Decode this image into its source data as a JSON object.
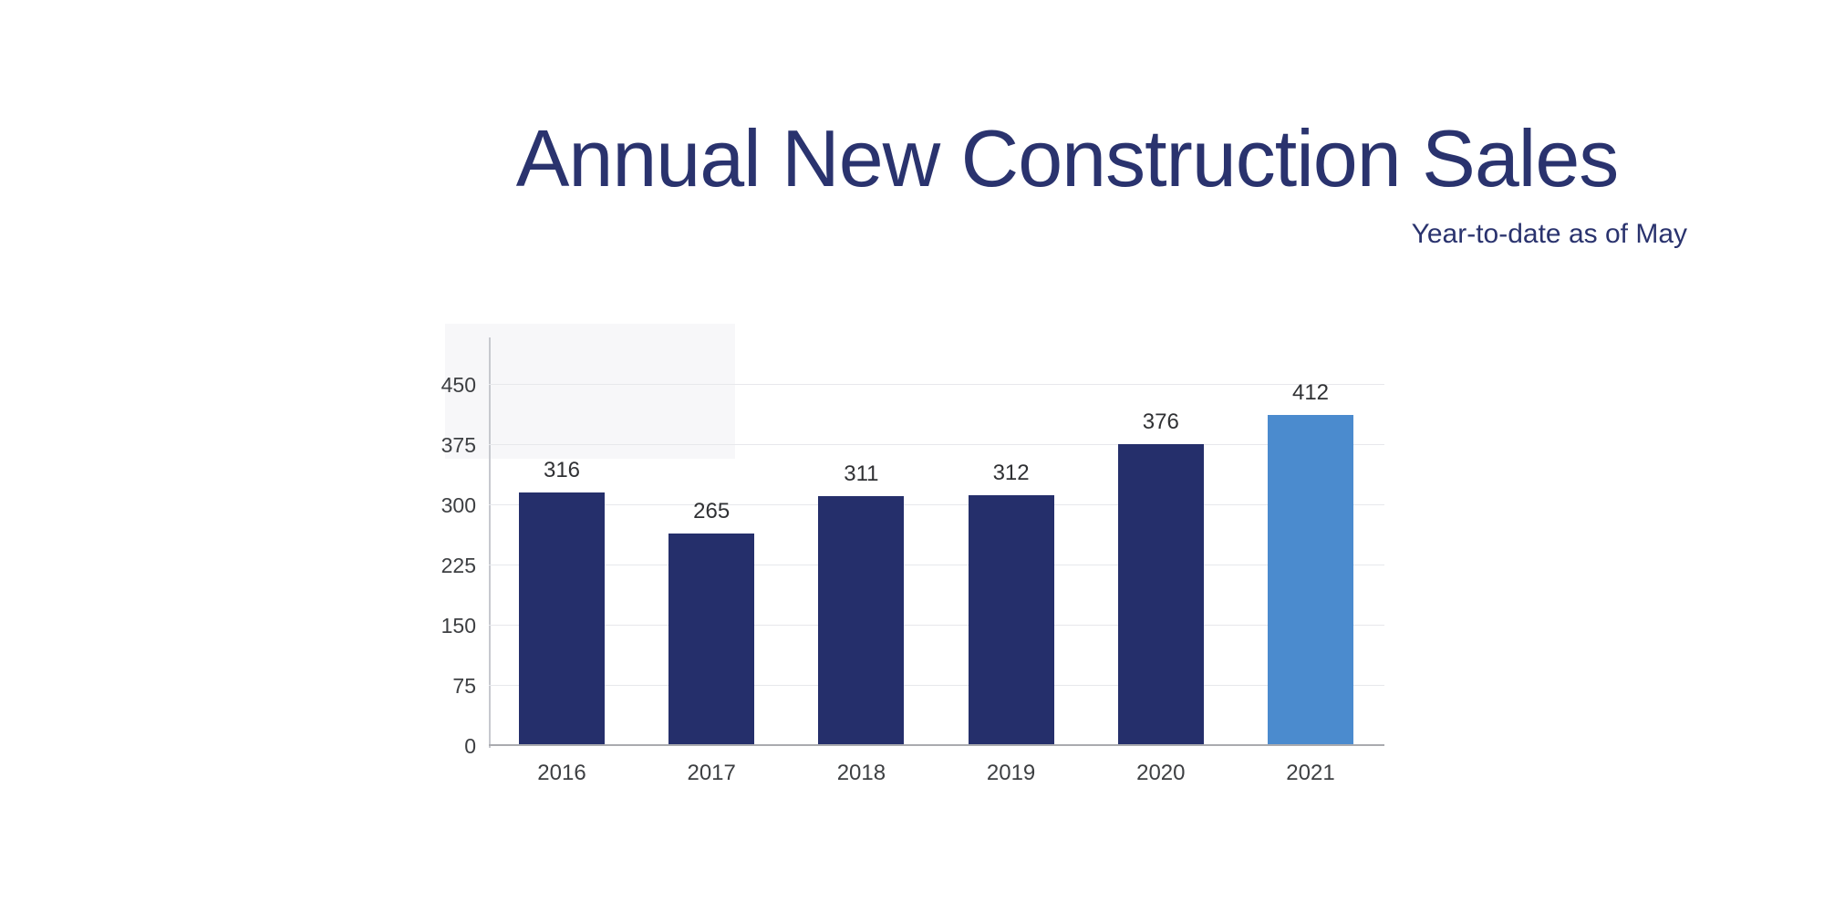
{
  "page": {
    "background_color": "#ffffff"
  },
  "header": {
    "title": "Annual New Construction Sales",
    "subtitle": "Year-to-date as of May",
    "title_color": "#2a336e"
  },
  "chart_data": {
    "type": "bar",
    "title": "Annual New Construction Sales",
    "subtitle": "Year-to-date as of May",
    "categories": [
      "2016",
      "2017",
      "2018",
      "2019",
      "2020",
      "2021"
    ],
    "values": [
      316,
      265,
      311,
      312,
      376,
      412
    ],
    "data_labels": [
      "316",
      "265",
      "311",
      "312",
      "376",
      "412"
    ],
    "highlight_index": 5,
    "xlabel": "",
    "ylabel": "",
    "y_ticks": [
      0,
      75,
      150,
      225,
      300,
      375,
      450
    ],
    "ylim": [
      0,
      509
    ],
    "grid": "horizontal",
    "legend_position": "none",
    "colors": {
      "bar": "#252f6b",
      "bar_highlight": "#4b8bce",
      "gridline": "#e7e8ec",
      "baseline": "#aaabaf",
      "axis_line": "#c7c9cf",
      "tick_label": "#3d3f42",
      "value_label": "#303134",
      "background_tint": "#f7f7f9"
    }
  }
}
